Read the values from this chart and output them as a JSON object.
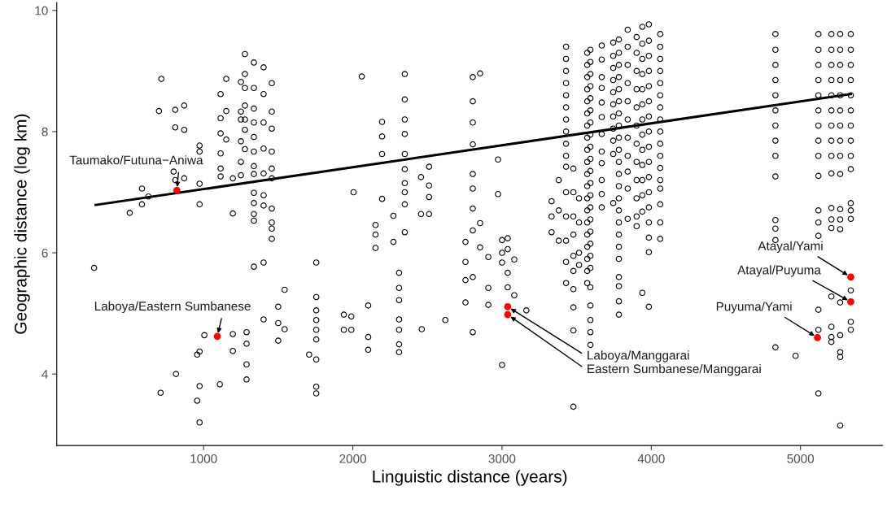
{
  "chart_data": {
    "type": "scatter",
    "xlabel": "Linguistic distance (years)",
    "ylabel": "Geographic distance (log km)",
    "xlim": [
      16,
      5550
    ],
    "ylim": [
      2.82,
      10.13
    ],
    "xticks": [
      1000,
      2000,
      3000,
      4000,
      5000
    ],
    "yticks": [
      4,
      6,
      8,
      10
    ],
    "grid": false,
    "legend": false,
    "series": [
      {
        "color": "#000000",
        "marker": "circle",
        "x": [
          266,
          505,
          587,
          587,
          630,
          701,
          712,
          717,
          799,
          810,
          810,
          810,
          815,
          870,
          870,
          870,
          957,
          957,
          973,
          973,
          973,
          973,
          973,
          973,
          973,
          1005,
          1109,
          1114,
          1114,
          1114,
          1114,
          1114,
          1114,
          1152,
          1152,
          1152,
          1196,
          1196,
          1196,
          1196,
          1250,
          1250,
          1250,
          1250,
          1250,
          1250,
          1277,
          1277,
          1277,
          1277,
          1277,
          1277,
          1277,
          1288,
          1288,
          1288,
          1288,
          1337,
          1337,
          1337,
          1337,
          1337,
          1337,
          1337,
          1337,
          1337,
          1337,
          1337,
          1337,
          1337,
          1402,
          1402,
          1402,
          1402,
          1402,
          1402,
          1402,
          1402,
          1402,
          1457,
          1457,
          1457,
          1457,
          1457,
          1457,
          1457,
          1457,
          1457,
          1457,
          1500,
          1500,
          1500,
          1543,
          1543,
          1707,
          1755,
          1755,
          1755,
          1755,
          1755,
          1755,
          1755,
          1755,
          1755,
          1940,
          1940,
          1990,
          1990,
          2005,
          2060,
          2103,
          2103,
          2103,
          2152,
          2152,
          2152,
          2196,
          2196,
          2196,
          2196,
          2272,
          2272,
          2310,
          2310,
          2310,
          2310,
          2310,
          2310,
          2310,
          2348,
          2348,
          2348,
          2348,
          2348,
          2348,
          2348,
          2348,
          2348,
          2348,
          2457,
          2457,
          2462,
          2511,
          2511,
          2511,
          2511,
          2620,
          2755,
          2755,
          2755,
          2755,
          2804,
          2804,
          2804,
          2804,
          2804,
          2804,
          2804,
          2804,
          2804,
          2804,
          2853,
          2853,
          2853,
          2908,
          2908,
          2908,
          2973,
          2973,
          3000,
          3000,
          3000,
          3000,
          3038,
          3038,
          3038,
          3038,
          3082,
          3082,
          3163,
          3332,
          3332,
          3332,
          3380,
          3380,
          3380,
          3429,
          3429,
          3429,
          3429,
          3429,
          3429,
          3429,
          3429,
          3429,
          3429,
          3429,
          3429,
          3429,
          3429,
          3429,
          3429,
          3478,
          3478,
          3478,
          3478,
          3478,
          3478,
          3478,
          3478,
          3478,
          3478,
          3516,
          3516,
          3516,
          3516,
          3571,
          3571,
          3571,
          3571,
          3571,
          3571,
          3571,
          3571,
          3571,
          3571,
          3571,
          3571,
          3571,
          3571,
          3571,
          3571,
          3571,
          3571,
          3571,
          3571,
          3592,
          3592,
          3592,
          3592,
          3592,
          3592,
          3592,
          3592,
          3592,
          3592,
          3592,
          3592,
          3592,
          3592,
          3592,
          3592,
          3592,
          3592,
          3592,
          3592,
          3592,
          3592,
          3592,
          3592,
          3668,
          3668,
          3668,
          3668,
          3668,
          3668,
          3668,
          3668,
          3668,
          3668,
          3668,
          3668,
          3745,
          3745,
          3745,
          3745,
          3745,
          3745,
          3745,
          3745,
          3745,
          3745,
          3745,
          3783,
          3783,
          3783,
          3783,
          3783,
          3783,
          3783,
          3783,
          3783,
          3783,
          3783,
          3783,
          3783,
          3783,
          3783,
          3783,
          3783,
          3783,
          3783,
          3783,
          3783,
          3783,
          3783,
          3842,
          3842,
          3842,
          3842,
          3842,
          3842,
          3842,
          3842,
          3842,
          3842,
          3842,
          3902,
          3902,
          3902,
          3902,
          3902,
          3902,
          3902,
          3902,
          3902,
          3902,
          3902,
          3902,
          3940,
          3940,
          3940,
          3940,
          3940,
          3940,
          3940,
          3940,
          3940,
          3940,
          3940,
          3940,
          3940,
          3940,
          3984,
          3984,
          3984,
          3984,
          3984,
          3984,
          3984,
          3984,
          3984,
          3984,
          3984,
          3984,
          3984,
          3984,
          3984,
          3984,
          3984,
          4060,
          4060,
          4060,
          4060,
          4060,
          4060,
          4060,
          4060,
          4060,
          4060,
          4060,
          4060,
          4060,
          4060,
          4060,
          4060,
          4060,
          4832,
          4832,
          4832,
          4832,
          4832,
          4832,
          4832,
          4832,
          4832,
          4832,
          4832,
          4832,
          4832,
          4832,
          4967,
          5120,
          5120,
          5120,
          5120,
          5120,
          5120,
          5120,
          5120,
          5120,
          5120,
          5120,
          5120,
          5120,
          5120,
          5120,
          5120,
          5207,
          5207,
          5207,
          5207,
          5207,
          5207,
          5207,
          5207,
          5207,
          5207,
          5207,
          5207,
          5207,
          5207,
          5207,
          5207,
          5207,
          5266,
          5266,
          5266,
          5266,
          5266,
          5266,
          5266,
          5266,
          5266,
          5266,
          5266,
          5266,
          5266,
          5266,
          5266,
          5266,
          5266,
          5266,
          5337,
          5337,
          5337,
          5337,
          5337,
          5337,
          5337,
          5337,
          5337,
          5337,
          5337,
          5337,
          5337,
          5337,
          5337,
          5337
        ],
        "values": [
          5.75,
          6.66,
          7.06,
          6.8,
          6.93,
          8.34,
          3.69,
          8.87,
          7.34,
          8.36,
          8.07,
          7.2,
          4.0,
          8.43,
          8.03,
          7.23,
          4.32,
          3.56,
          7.77,
          7.67,
          7.14,
          6.8,
          4.37,
          3.8,
          3.2,
          4.64,
          3.83,
          8.62,
          8.22,
          7.97,
          7.64,
          7.39,
          7.26,
          8.87,
          8.34,
          7.87,
          7.23,
          6.65,
          4.66,
          4.38,
          8.82,
          8.33,
          8.2,
          7.84,
          7.5,
          7.28,
          9.28,
          8.95,
          8.72,
          8.43,
          8.2,
          8.03,
          7.71,
          4.69,
          4.5,
          4.16,
          3.91,
          9.14,
          8.72,
          8.38,
          8.15,
          7.91,
          7.67,
          7.43,
          7.3,
          6.99,
          6.82,
          6.64,
          6.53,
          5.77,
          9.06,
          8.62,
          8.15,
          7.72,
          7.31,
          6.95,
          6.78,
          5.84,
          4.9,
          8.8,
          8.33,
          8.05,
          7.67,
          7.39,
          7.23,
          6.73,
          6.5,
          6.4,
          6.23,
          5.11,
          4.84,
          4.55,
          5.39,
          4.74,
          4.32,
          5.84,
          5.27,
          5.05,
          4.89,
          4.73,
          4.57,
          4.24,
          3.79,
          3.68,
          4.98,
          4.73,
          4.95,
          4.73,
          7.0,
          8.91,
          5.13,
          4.61,
          4.4,
          6.46,
          6.3,
          6.08,
          8.16,
          7.92,
          7.63,
          6.89,
          6.61,
          6.18,
          5.67,
          5.42,
          5.22,
          4.9,
          4.73,
          4.49,
          4.36,
          8.95,
          8.53,
          8.2,
          7.96,
          7.63,
          7.38,
          7.15,
          7.0,
          6.8,
          6.34,
          7.25,
          6.64,
          4.74,
          7.42,
          7.11,
          6.92,
          6.64,
          4.89,
          6.18,
          5.85,
          5.55,
          5.18,
          8.9,
          8.5,
          8.15,
          7.79,
          7.3,
          7.06,
          6.73,
          6.37,
          5.6,
          4.69,
          8.96,
          6.49,
          6.09,
          5.93,
          5.42,
          5.14,
          7.54,
          6.97,
          6.21,
          6.0,
          5.84,
          4.15,
          6.24,
          6.06,
          5.67,
          5.43,
          5.89,
          5.3,
          5.05,
          6.85,
          6.6,
          6.34,
          7.2,
          6.7,
          6.2,
          9.4,
          9.2,
          9.0,
          8.8,
          8.6,
          8.4,
          8.2,
          8.0,
          7.8,
          7.6,
          7.42,
          7.0,
          6.6,
          6.2,
          5.85,
          5.5,
          7.39,
          7.0,
          6.6,
          6.3,
          5.95,
          5.7,
          5.4,
          5.1,
          4.72,
          3.46,
          6.9,
          6.5,
          6.0,
          5.8,
          9.3,
          9.1,
          8.9,
          8.7,
          8.5,
          8.3,
          8.1,
          7.9,
          7.7,
          7.5,
          7.3,
          7.1,
          6.9,
          6.7,
          6.5,
          6.3,
          6.1,
          5.9,
          5.7,
          5.5,
          9.35,
          9.15,
          8.95,
          8.75,
          8.55,
          8.35,
          8.15,
          7.95,
          7.75,
          7.55,
          7.35,
          7.15,
          6.95,
          6.75,
          6.55,
          6.35,
          6.15,
          5.95,
          5.75,
          5.43,
          5.13,
          4.89,
          4.69,
          4.48,
          9.42,
          9.19,
          8.9,
          8.72,
          8.48,
          8.24,
          7.96,
          7.67,
          7.48,
          7.2,
          6.97,
          6.75,
          9.47,
          9.25,
          9.05,
          8.85,
          8.65,
          8.45,
          8.25,
          8.05,
          7.85,
          7.63,
          6.82,
          9.52,
          9.3,
          9.1,
          8.9,
          8.7,
          8.5,
          8.3,
          8.1,
          7.9,
          7.7,
          7.5,
          7.3,
          7.1,
          6.9,
          6.7,
          6.5,
          6.3,
          6.1,
          5.9,
          5.6,
          5.45,
          5.2,
          4.98,
          9.68,
          9.4,
          9.1,
          8.8,
          8.5,
          8.2,
          7.9,
          7.6,
          7.34,
          7.06,
          6.56,
          9.56,
          9.3,
          9.0,
          8.7,
          8.4,
          8.1,
          7.8,
          7.5,
          7.2,
          6.9,
          6.6,
          6.44,
          9.73,
          9.45,
          9.2,
          8.95,
          8.7,
          8.45,
          8.2,
          7.95,
          7.7,
          7.45,
          7.2,
          6.95,
          6.68,
          5.34,
          9.77,
          9.5,
          9.25,
          9.0,
          8.75,
          8.5,
          8.25,
          8.0,
          7.75,
          7.5,
          7.25,
          7.0,
          6.75,
          6.5,
          6.25,
          6.01,
          5.11,
          9.61,
          9.4,
          9.2,
          9.0,
          8.8,
          8.6,
          8.4,
          8.2,
          8.0,
          7.8,
          7.6,
          7.4,
          7.2,
          7.06,
          6.8,
          6.5,
          6.23,
          9.61,
          9.35,
          9.1,
          8.85,
          8.6,
          8.35,
          8.1,
          7.85,
          7.6,
          7.26,
          6.54,
          6.4,
          6.21,
          4.44,
          4.3,
          9.61,
          9.35,
          9.1,
          8.85,
          8.6,
          8.35,
          8.1,
          7.85,
          7.6,
          7.27,
          6.7,
          6.5,
          6.28,
          5.06,
          4.73,
          3.68,
          9.61,
          9.35,
          9.1,
          8.85,
          8.6,
          8.35,
          8.1,
          7.85,
          7.6,
          7.31,
          6.74,
          6.55,
          6.41,
          5.28,
          4.78,
          4.61,
          4.53,
          9.61,
          9.35,
          9.1,
          8.85,
          8.6,
          8.35,
          8.1,
          7.85,
          7.6,
          7.3,
          6.72,
          6.55,
          6.39,
          5.18,
          4.64,
          4.36,
          4.28,
          3.15,
          9.61,
          9.35,
          9.1,
          8.85,
          8.6,
          8.35,
          8.1,
          7.85,
          7.6,
          7.38,
          6.82,
          6.7,
          6.56,
          5.38,
          4.86,
          4.73
        ]
      },
      {
        "type": "line",
        "color": "#000000",
        "marker": "none",
        "line_style": "solid",
        "x": [
          277,
          5337
        ],
        "values": [
          6.79,
          8.62
        ]
      },
      {
        "color": "#ff0000",
        "marker": "circle",
        "x": [
          821,
          1092,
          3038,
          3038,
          5337,
          5337,
          5114
        ],
        "values": [
          7.03,
          4.62,
          5.11,
          4.98,
          5.6,
          5.19,
          4.6
        ]
      }
    ],
    "annotations": [
      {
        "text": "Taumako/Futuna−Aniwa",
        "x": 821,
        "y": 7.03
      },
      {
        "text": "Laboya/Eastern Sumbanese",
        "x": 1092,
        "y": 4.62
      },
      {
        "text": "Laboya/Manggarai",
        "x": 3038,
        "y": 5.11
      },
      {
        "text": "Eastern Sumbanese/Manggarai",
        "x": 3038,
        "y": 4.98
      },
      {
        "text": "Atayal/Yami",
        "x": 5337,
        "y": 5.6
      },
      {
        "text": "Atayal/Puyuma",
        "x": 5337,
        "y": 5.19
      },
      {
        "text": "Puyuma/Yami",
        "x": 5114,
        "y": 4.6
      }
    ]
  }
}
